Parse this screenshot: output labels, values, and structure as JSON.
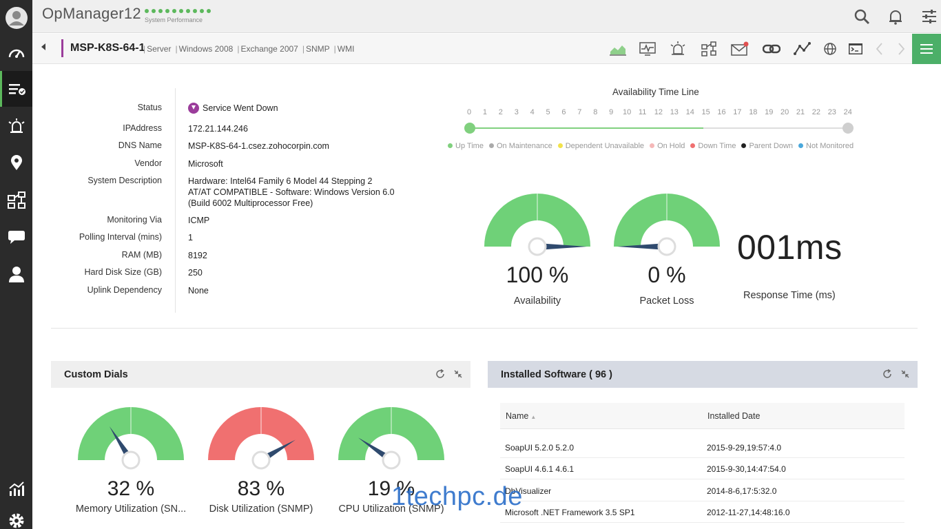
{
  "header": {
    "app_title": "OpManager12",
    "subtitle": "System Performance"
  },
  "sidebar": {
    "items": [
      "dashboard-icon",
      "inventory-icon",
      "alarms-icon",
      "maps-icon",
      "workflow-icon",
      "chat-icon",
      "user-icon",
      "reports-icon",
      "settings-icon"
    ],
    "active": "inventory-icon"
  },
  "device": {
    "name": "MSP-K8S-64-1",
    "tags": [
      "Server",
      "Windows 2008",
      "Exchange 2007",
      "SNMP",
      "WMI"
    ]
  },
  "details": [
    {
      "label": "Status",
      "value": "Service Went Down"
    },
    {
      "label": "IPAddress",
      "value": "172.21.144.246"
    },
    {
      "label": "DNS Name",
      "value": "MSP-K8S-64-1.csez.zohocorpin.com"
    },
    {
      "label": "Vendor",
      "value": "Microsoft"
    },
    {
      "label": "System Description",
      "value": "Hardware: Intel64 Family 6 Model 44 Stepping 2 AT/AT COMPATIBLE - Software: Windows Version 6.0 (Build 6002 Multiprocessor Free)"
    },
    {
      "label": "Monitoring Via",
      "value": "ICMP"
    },
    {
      "label": "Polling Interval (mins)",
      "value": "1"
    },
    {
      "label": "RAM (MB)",
      "value": "8192"
    },
    {
      "label": "Hard Disk Size (GB)",
      "value": "250"
    },
    {
      "label": "Uplink Dependency",
      "value": "None"
    }
  ],
  "availability": {
    "title": "Availability Time Line",
    "hours": [
      "0",
      "1",
      "2",
      "3",
      "4",
      "5",
      "6",
      "7",
      "8",
      "9",
      "10",
      "11",
      "12",
      "13",
      "14",
      "15",
      "16",
      "17",
      "18",
      "19",
      "20",
      "21",
      "22",
      "23",
      "24"
    ],
    "legend": [
      {
        "label": "Up Time",
        "color": "#80d07e"
      },
      {
        "label": "On Maintenance",
        "color": "#aaaaaa"
      },
      {
        "label": "Dependent Unavailable",
        "color": "#f2e24a"
      },
      {
        "label": "On Hold",
        "color": "#f5b8b8"
      },
      {
        "label": "Down Time",
        "color": "#f07070"
      },
      {
        "label": "Parent Down",
        "color": "#222222"
      },
      {
        "label": "Not Monitored",
        "color": "#4aa8dc"
      }
    ]
  },
  "gauges": {
    "availability": {
      "value": "100 %",
      "label": "Availability",
      "percent": 100
    },
    "packet_loss": {
      "value": "0 %",
      "label": "Packet Loss",
      "percent": 0
    },
    "response": {
      "value": "001ms",
      "label": "Response Time (ms)"
    }
  },
  "custom_dials": {
    "title": "Custom Dials",
    "dials": [
      {
        "value": "32 %",
        "label": "Memory Utilization (SN...",
        "percent": 32,
        "color": "#6fd178"
      },
      {
        "value": "83 %",
        "label": "Disk Utilization (SNMP)",
        "percent": 83,
        "color": "#f07070"
      },
      {
        "value": "19 %",
        "label": "CPU Utilization (SNMP)",
        "percent": 19,
        "color": "#6fd178"
      }
    ]
  },
  "software": {
    "title": "Installed Software ( 96 )",
    "columns": [
      "Name",
      "Installed Date"
    ],
    "rows": [
      [
        "SoapUI 5.2.0 5.2.0",
        "2015-9-29,19:57:4.0"
      ],
      [
        "SoapUI 4.6.1 4.6.1",
        "2015-9-30,14:47:54.0"
      ],
      [
        "DbVisualizer",
        "2014-8-6,17:5:32.0"
      ],
      [
        "Microsoft .NET Framework 3.5 SP1",
        "2012-11-27,14:48:16.0"
      ]
    ]
  },
  "watermark": "1techpc.de",
  "colors": {
    "accent_green": "#4caf68",
    "device_accent": "#9b3d9b",
    "gauge_needle": "#2f4a6e"
  }
}
